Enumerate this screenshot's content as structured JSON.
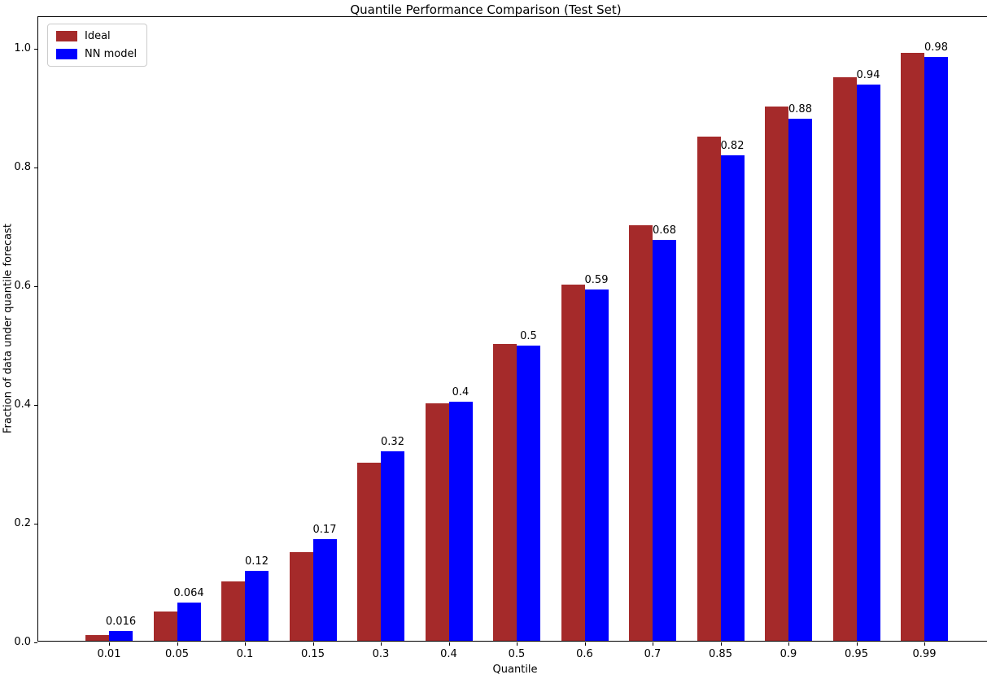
{
  "chart_data": {
    "type": "bar",
    "title": "Quantile Performance Comparison (Test Set)",
    "xlabel": "Quantile",
    "ylabel": "Fraction of data under quantile forecast",
    "categories": [
      "0.01",
      "0.05",
      "0.1",
      "0.15",
      "0.3",
      "0.4",
      "0.5",
      "0.6",
      "0.7",
      "0.85",
      "0.9",
      "0.95",
      "0.99"
    ],
    "series": [
      {
        "name": "Ideal",
        "color": "#A52A2A",
        "values": [
          0.01,
          0.05,
          0.1,
          0.15,
          0.3,
          0.4,
          0.5,
          0.6,
          0.7,
          0.85,
          0.9,
          0.95,
          0.99
        ]
      },
      {
        "name": "NN model",
        "color": "#0000FF",
        "values": [
          0.016,
          0.064,
          0.118,
          0.171,
          0.319,
          0.403,
          0.497,
          0.592,
          0.676,
          0.818,
          0.879,
          0.937,
          0.984
        ],
        "bar_labels": [
          "0.016",
          "0.064",
          "0.12",
          "0.17",
          "0.32",
          "0.4",
          "0.5",
          "0.59",
          "0.68",
          "0.82",
          "0.88",
          "0.94",
          "0.98"
        ]
      }
    ],
    "yticks": [
      "0.0",
      "0.2",
      "0.4",
      "0.6",
      "0.8",
      "1.0"
    ],
    "ytick_values": [
      0.0,
      0.2,
      0.4,
      0.6,
      0.8,
      1.0
    ],
    "ylim": [
      0,
      1.053
    ],
    "legend_position": "upper left",
    "grid": false,
    "axis_color": "#000000",
    "background_color": "#ffffff"
  }
}
